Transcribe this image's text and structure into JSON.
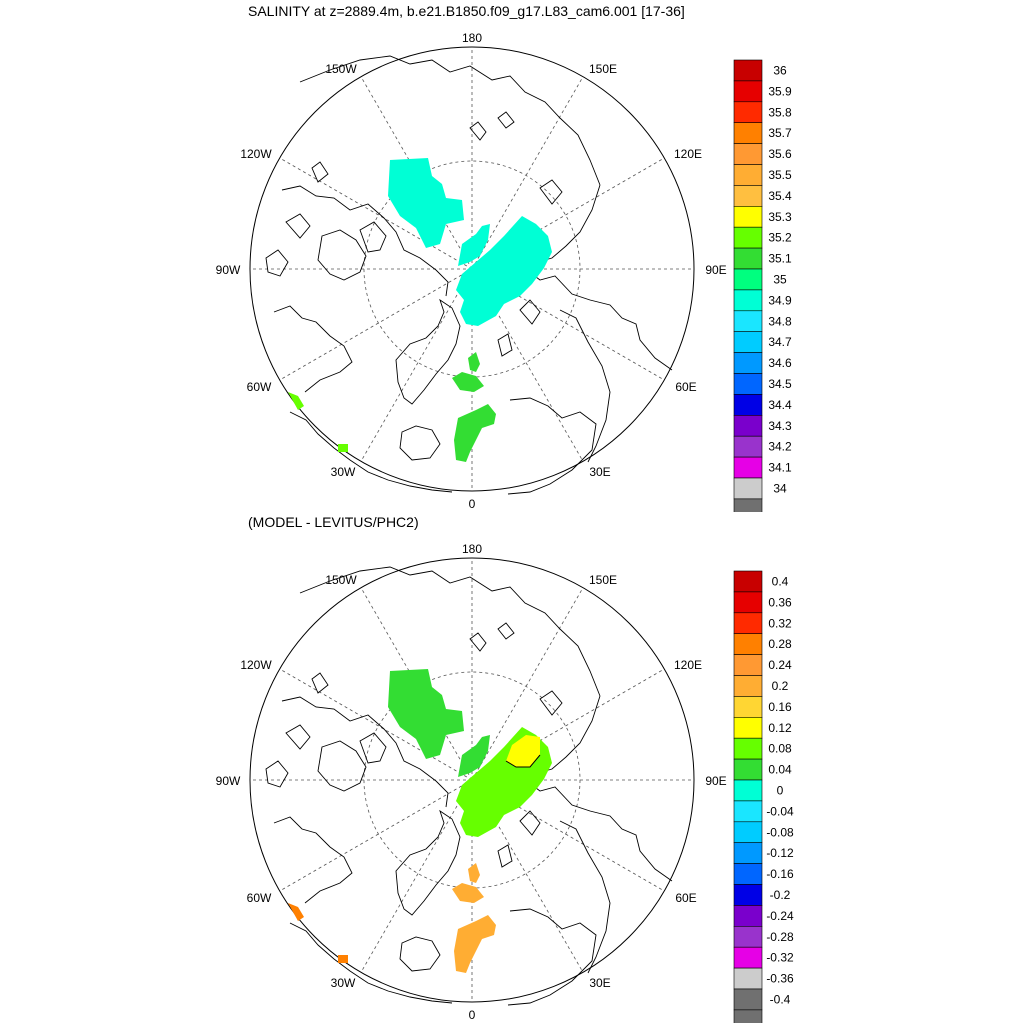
{
  "titles": {
    "top": "SALINITY at z=2889.4m, b.e21.B1850.f09_g17.L83_cam6.001 [17-36]",
    "bottom": "(MODEL - LEVITUS/PHC2)"
  },
  "longitude_labels": {
    "lon180": "180",
    "lon150w": "150W",
    "lon150e": "150E",
    "lon120w": "120W",
    "lon120e": "120E",
    "lon90w": "90W",
    "lon90e": "90E",
    "lon60w": "60W",
    "lon60e": "60E",
    "lon30w": "30W",
    "lon30e": "30E",
    "lon0": "0"
  },
  "colorbar_top": {
    "labels": [
      "36",
      "35.9",
      "35.8",
      "35.7",
      "35.6",
      "35.5",
      "35.4",
      "35.3",
      "35.2",
      "35.1",
      "35",
      "34.9",
      "34.8",
      "34.7",
      "34.6",
      "34.5",
      "34.4",
      "34.3",
      "34.2",
      "34.1",
      "34"
    ],
    "colors": [
      "#c80000",
      "#e60000",
      "#ff2a00",
      "#ff8000",
      "#ff9933",
      "#ffad33",
      "#ffbf40",
      "#ffff00",
      "#66ff00",
      "#33dd33",
      "#00ff7f",
      "#00ffd5",
      "#1ae6ff",
      "#00ccff",
      "#0099ff",
      "#0066ff",
      "#0000e6",
      "#7a00cc",
      "#9933cc",
      "#e600e6",
      "#cccccc",
      "#707070"
    ]
  },
  "colorbar_bottom": {
    "labels": [
      "0.4",
      "0.36",
      "0.32",
      "0.28",
      "0.24",
      "0.2",
      "0.16",
      "0.12",
      "0.08",
      "0.04",
      "0",
      "-0.04",
      "-0.08",
      "-0.12",
      "-0.16",
      "-0.2",
      "-0.24",
      "-0.28",
      "-0.32",
      "-0.36",
      "-0.4"
    ],
    "colors": [
      "#c80000",
      "#e60000",
      "#ff2a00",
      "#ff8000",
      "#ff9933",
      "#ffad33",
      "#ffd633",
      "#ffff00",
      "#66ff00",
      "#33dd33",
      "#00ffd5",
      "#1ae6ff",
      "#00ccff",
      "#0099ff",
      "#0066ff",
      "#0000e6",
      "#7a00cc",
      "#9933cc",
      "#e600e6",
      "#cccccc",
      "#707070",
      "#707070"
    ]
  },
  "fields": {
    "top": {
      "beaufort": "#00ffd5",
      "lomonosov_finger": "#00ffd5",
      "eurasian": "#00ffd5",
      "fram_small": "#33dd33",
      "fram": "#33dd33",
      "greenland_sea": "#33dd33",
      "west_edge": "#66ff00",
      "sw_dot": "#66ff00"
    },
    "bottom": {
      "beaufort": "#33dd33",
      "lomonosov_finger": "#33dd33",
      "eurasian": "#66ff00",
      "eurasian_hot": "#ffff00",
      "fram_small": "#ffad33",
      "fram": "#ffad33",
      "greenland_sea": "#ffad33",
      "west_edge": "#ff8000",
      "sw_dot": "#ff8000"
    }
  }
}
